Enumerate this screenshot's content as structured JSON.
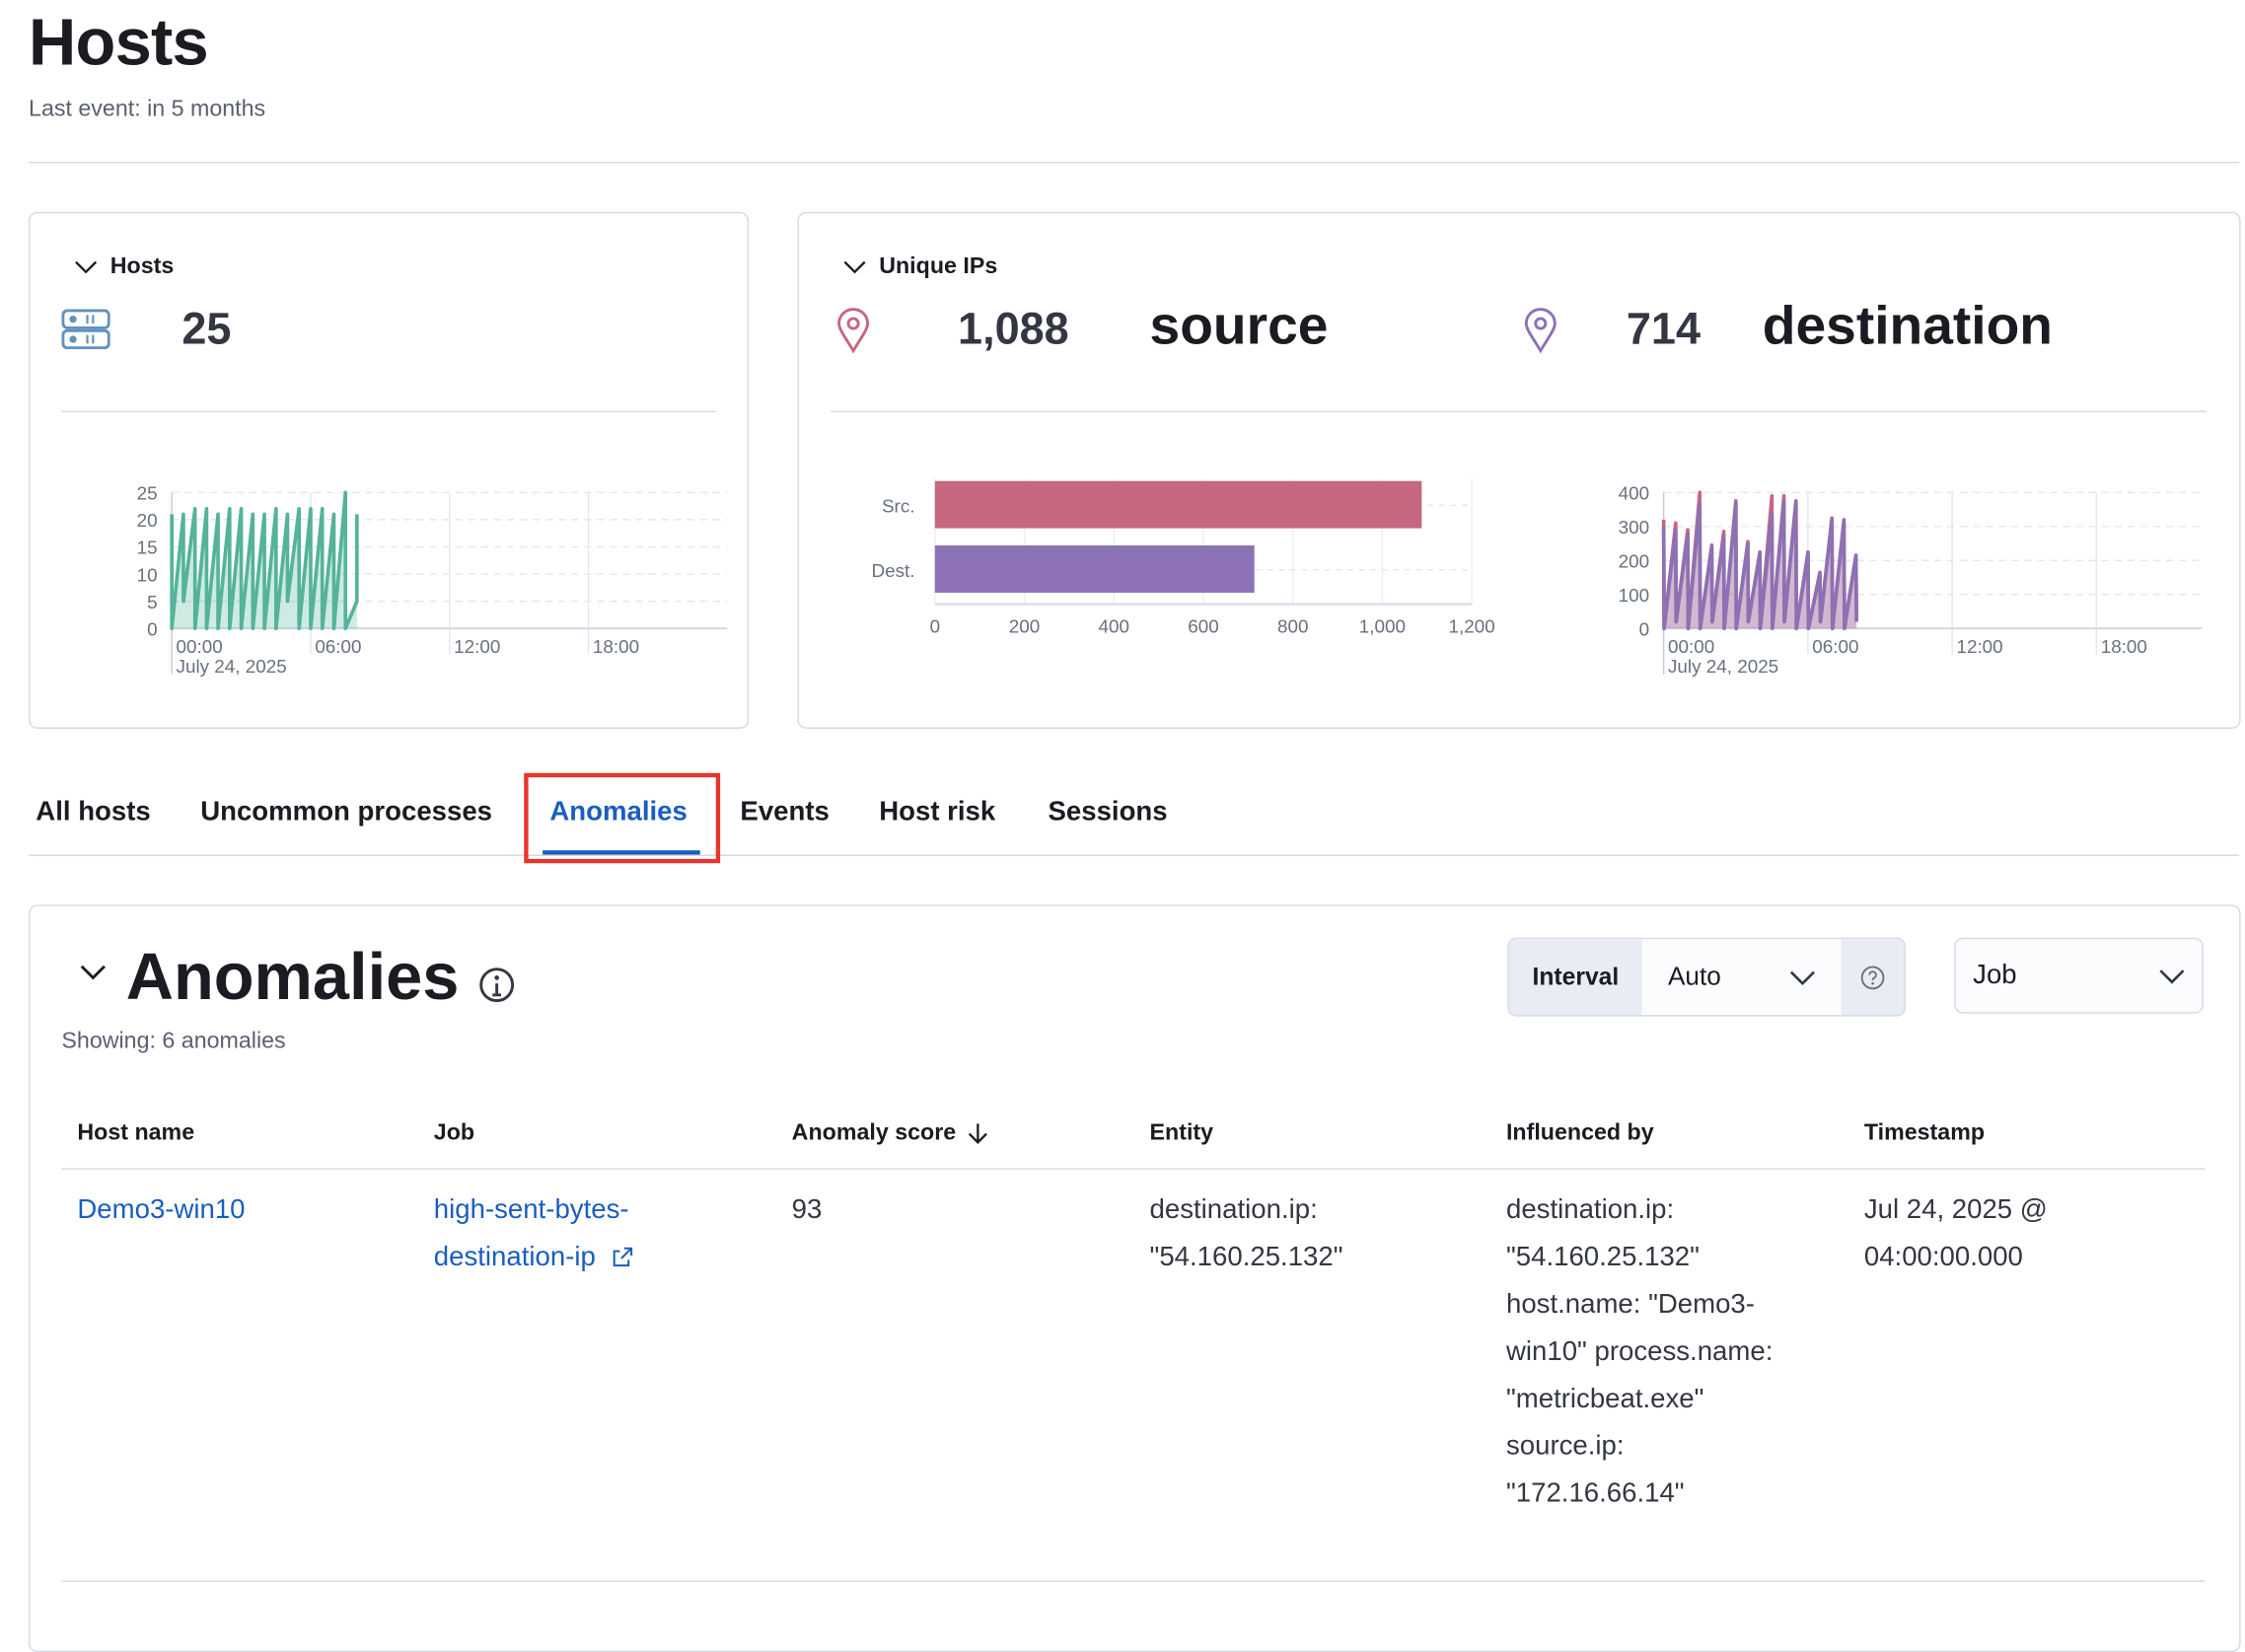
{
  "page": {
    "title": "Hosts",
    "last_event": "Last event: in 5 months"
  },
  "hosts_panel": {
    "title": "Hosts",
    "count": "25",
    "icon": "server-icon",
    "color": "#54b399"
  },
  "ips_panel": {
    "title": "Unique IPs",
    "source_count": "1,088",
    "source_label": "source",
    "destination_count": "714",
    "destination_label": "destination",
    "source_color": "#c4677f",
    "destination_color": "#8c71b4",
    "icon": "map-pin-icon"
  },
  "tabs": [
    {
      "label": "All hosts"
    },
    {
      "label": "Uncommon processes"
    },
    {
      "label": "Anomalies",
      "selected": true
    },
    {
      "label": "Events"
    },
    {
      "label": "Host risk"
    },
    {
      "label": "Sessions"
    }
  ],
  "anomalies": {
    "title": "Anomalies",
    "showing": "Showing: 6 anomalies",
    "interval_label": "Interval",
    "interval_value": "Auto",
    "job_placeholder": "Job",
    "columns": [
      "Host name",
      "Job",
      "Anomaly score",
      "Entity",
      "Influenced by",
      "Timestamp"
    ],
    "rows": [
      {
        "host": "Demo3-win10",
        "job": "high-sent-bytes-destination-ip",
        "score": "93",
        "entity": "destination.ip: \"54.160.25.132\"",
        "influenced_by": "destination.ip: \"54.160.25.132\" host.name: \"Demo3-win10\" process.name: \"metricbeat.exe\" source.ip: \"172.16.66.14\"",
        "timestamp": "Jul 24, 2025 @ 04:00:00.000"
      }
    ]
  },
  "chart_data": [
    {
      "type": "area",
      "ylim": [
        0,
        25
      ],
      "yticks": [
        "0",
        "5",
        "10",
        "15",
        "20",
        "25"
      ],
      "xticks": [
        "00:00",
        "06:00",
        "12:00",
        "18:00"
      ],
      "date_label": "July 24, 2025",
      "grid": true,
      "series": [
        {
          "color": "#54b399",
          "points": [
            [
              "00:00",
              21
            ],
            [
              "00:00",
              0
            ],
            [
              "00:30",
              21
            ],
            [
              "00:30",
              5
            ],
            [
              "01:00",
              22
            ],
            [
              "01:00",
              0
            ],
            [
              "01:30",
              22
            ],
            [
              "01:30",
              0
            ],
            [
              "02:00",
              21
            ],
            [
              "02:00",
              0
            ],
            [
              "02:30",
              22
            ],
            [
              "02:30",
              0
            ],
            [
              "03:00",
              22
            ],
            [
              "03:00",
              0
            ],
            [
              "03:30",
              21
            ],
            [
              "03:30",
              0
            ],
            [
              "04:00",
              21
            ],
            [
              "04:00",
              0
            ],
            [
              "04:30",
              22
            ],
            [
              "04:30",
              0
            ],
            [
              "05:00",
              21
            ],
            [
              "05:00",
              5
            ],
            [
              "05:30",
              22
            ],
            [
              "05:30",
              0
            ],
            [
              "06:00",
              22
            ],
            [
              "06:00",
              0
            ],
            [
              "06:30",
              22
            ],
            [
              "06:30",
              0
            ],
            [
              "07:00",
              21
            ],
            [
              "07:00",
              0
            ],
            [
              "07:30",
              25
            ],
            [
              "07:30",
              0
            ],
            [
              "08:00",
              5
            ],
            [
              "08:00",
              21
            ]
          ]
        }
      ]
    },
    {
      "type": "bar",
      "orientation": "horizontal",
      "categories": [
        "Src.",
        "Dest."
      ],
      "values": [
        1088,
        714
      ],
      "colors": [
        "#c4677f",
        "#8c71b4"
      ],
      "xlim": [
        0,
        1200
      ],
      "xticks": [
        "0",
        "200",
        "400",
        "600",
        "800",
        "1,000",
        "1,200"
      ],
      "grid": true
    },
    {
      "type": "area",
      "ylim": [
        0,
        400
      ],
      "yticks": [
        "0",
        "100",
        "200",
        "300",
        "400"
      ],
      "xticks": [
        "00:00",
        "06:00",
        "12:00",
        "18:00"
      ],
      "date_label": "July 24, 2025",
      "grid": true,
      "series": [
        {
          "name": "source",
          "color": "#c4677f",
          "peaks": [
            320,
            310,
            290,
            400,
            245,
            285,
            375,
            255,
            225,
            390,
            390,
            375,
            225,
            165,
            325,
            320,
            215
          ]
        },
        {
          "name": "destination",
          "color": "#8c71b4",
          "peaks": [
            300,
            290,
            280,
            365,
            240,
            270,
            370,
            250,
            220,
            335,
            375,
            370,
            220,
            160,
            320,
            315,
            215
          ]
        }
      ]
    }
  ]
}
